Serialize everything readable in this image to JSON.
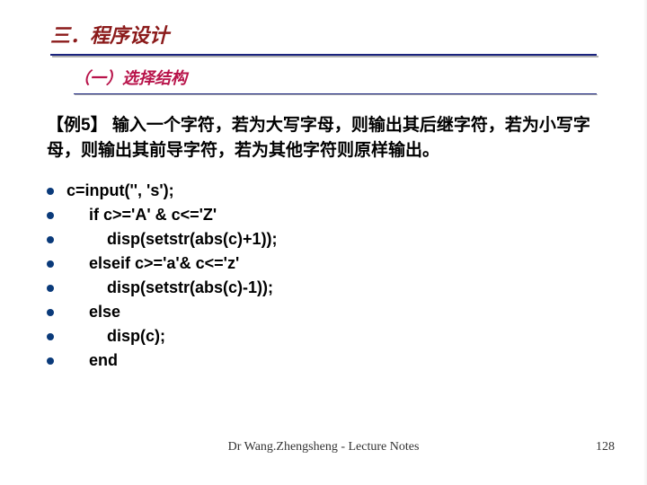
{
  "colors": {
    "title": "#8b1a1a",
    "subtitle": "#b8134a",
    "body": "#000000",
    "bullet": "#0a3a7a",
    "footer": "#333333"
  },
  "title": "三．程序设计",
  "subtitle": "（一）选择结构",
  "example_label": "【例5】",
  "example_text": "  输入一个字符，若为大写字母，则输出其后继字符，若为小写字母，则输出其前导字符，若为其他字符则原样输出。",
  "code_lines": [
    "c=input('', 's');",
    "     if c>='A' & c<='Z'",
    "         disp(setstr(abs(c)+1));",
    "     elseif c>='a'& c<='z'",
    "         disp(setstr(abs(c)-1));",
    "     else",
    "         disp(c);",
    "     end"
  ],
  "footer": "Dr Wang.Zhengsheng - Lecture Notes",
  "page": "128"
}
